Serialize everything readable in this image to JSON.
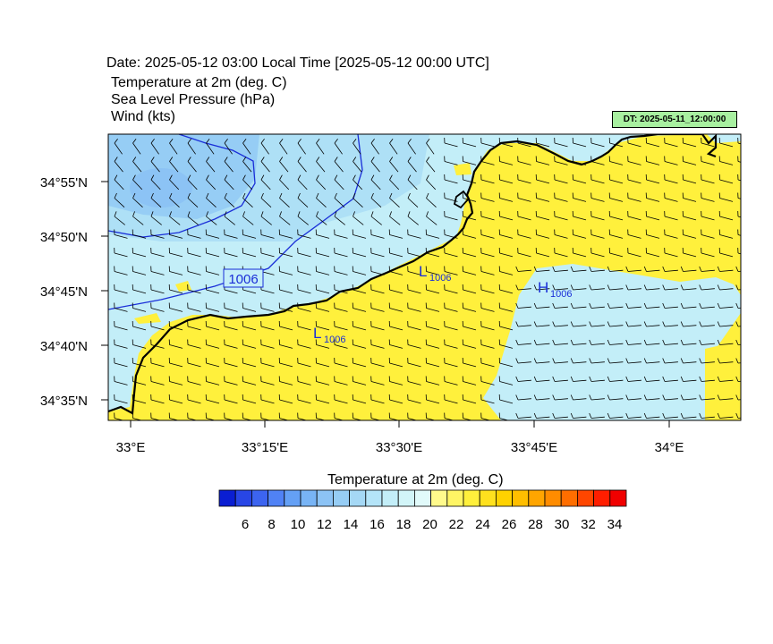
{
  "header": {
    "date_line": "Date: 2025-05-12  03:00 Local Time [2025-05-12  00:00 UTC]",
    "field1": "Temperature at 2m   (deg. C)",
    "field2": "Sea Level Pressure   (hPa)",
    "field3": "Wind   (kts)",
    "dt_badge": "DT: 2025-05-11_12:00:00"
  },
  "map": {
    "lat_labels": [
      "34°55'N",
      "34°50'N",
      "34°45'N",
      "34°40'N",
      "34°35'N"
    ],
    "lon_labels": [
      "33°E",
      "33°15'E",
      "33°30'E",
      "33°45'E",
      "34°E"
    ],
    "pressure_labels": {
      "contour": "1006",
      "low1": "L",
      "low1_val": "1006",
      "low2": "L",
      "low2_val": "1006",
      "high": "H",
      "high_val": "1006"
    }
  },
  "colorbar": {
    "title": "Temperature at 2m  (deg. C)",
    "tick_labels": [
      "6",
      "8",
      "10",
      "12",
      "14",
      "16",
      "18",
      "20",
      "22",
      "24",
      "26",
      "28",
      "30",
      "32",
      "34"
    ],
    "colors": [
      "#0a1ed2",
      "#2846e6",
      "#3c64f0",
      "#5082f5",
      "#64a0f5",
      "#78b4f5",
      "#8cc3f5",
      "#96cdf5",
      "#a5d8f5",
      "#b4e4f8",
      "#c3eef8",
      "#d2f5f8",
      "#e1fafa",
      "#fffa8c",
      "#fff564",
      "#fff03c",
      "#ffe11e",
      "#ffd200",
      "#ffbe00",
      "#ffa500",
      "#ff8c00",
      "#ff6e00",
      "#ff4600",
      "#ff1e00",
      "#f00000"
    ],
    "highlight_colors": {
      "sea_cool": "#c3eef8",
      "sea_cold": "#8cc3f5",
      "land_warm": "#fff03c"
    }
  }
}
